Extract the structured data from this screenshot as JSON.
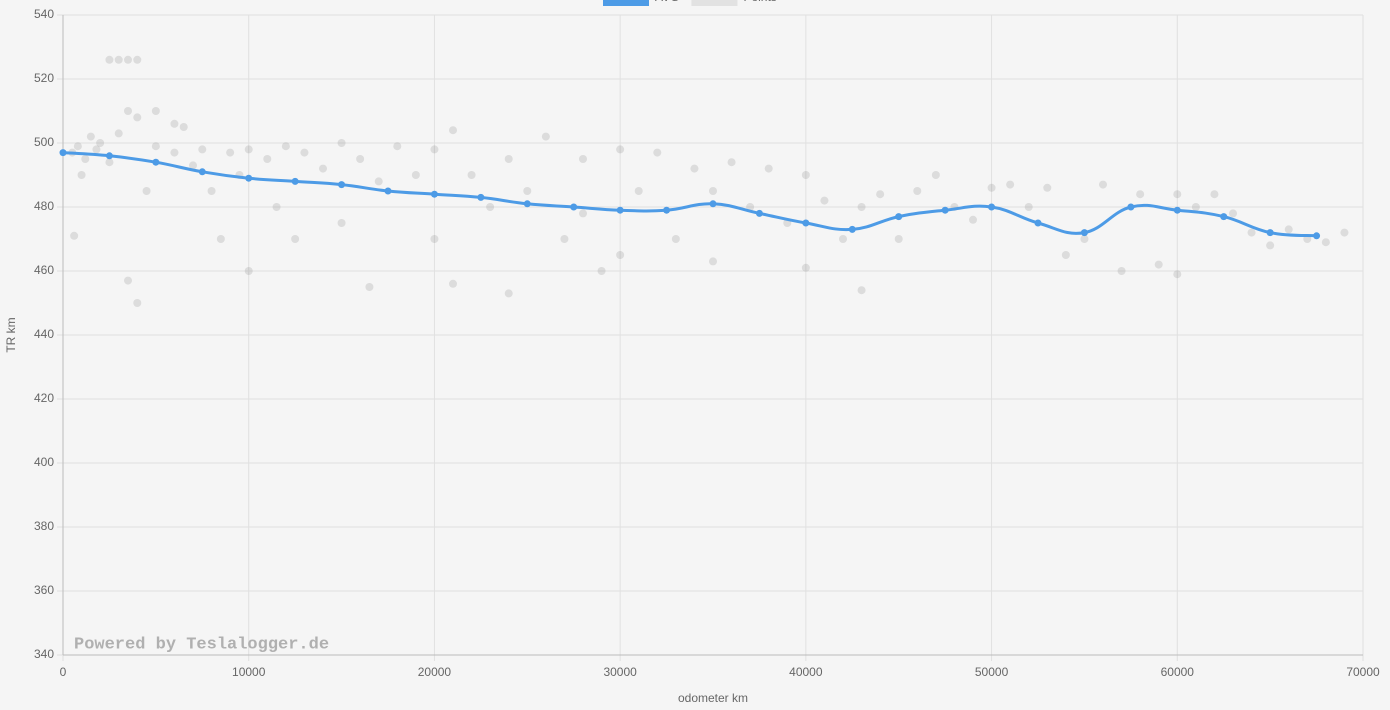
{
  "chart_data": {
    "type": "line",
    "xlabel": "odometer km",
    "ylabel": "TR km",
    "watermark": "Powered by Teslalogger.de",
    "xlim": [
      0,
      70000
    ],
    "xticks": [
      0,
      10000,
      20000,
      30000,
      40000,
      50000,
      60000,
      70000
    ],
    "ylim": [
      340,
      540
    ],
    "yticks": [
      340,
      360,
      380,
      400,
      420,
      440,
      460,
      480,
      500,
      520,
      540
    ],
    "grid": true,
    "legend": "top",
    "series": [
      {
        "name": "AVG",
        "type": "line",
        "color": "#4d9be6",
        "x": [
          0,
          2500,
          5000,
          7500,
          10000,
          12500,
          15000,
          17500,
          20000,
          22500,
          25000,
          27500,
          30000,
          32500,
          35000,
          37500,
          40000,
          42500,
          45000,
          47500,
          50000,
          52500,
          55000,
          57500,
          60000,
          62500,
          65000,
          67500
        ],
        "values": [
          497,
          496,
          494,
          491,
          489,
          488,
          487,
          485,
          484,
          483,
          481,
          480,
          479,
          479,
          481,
          478,
          475,
          473,
          477,
          479,
          480,
          475,
          472,
          480,
          479,
          477,
          472,
          471
        ]
      },
      {
        "name": "Points",
        "type": "scatter",
        "color": "#7a7a7a",
        "x": [
          500,
          800,
          1200,
          1500,
          1800,
          600,
          1000,
          2500,
          3000,
          3500,
          4000,
          2000,
          2500,
          3000,
          3500,
          4000,
          3500,
          4000,
          5000,
          5000,
          4500,
          6000,
          6500,
          6000,
          7000,
          7500,
          8000,
          8500,
          9000,
          9500,
          10000,
          10000,
          11000,
          11500,
          12000,
          12500,
          13000,
          14000,
          15000,
          15000,
          16000,
          16500,
          17000,
          18000,
          19000,
          20000,
          20000,
          21000,
          21000,
          22000,
          23000,
          24000,
          24000,
          25000,
          26000,
          27000,
          28000,
          28000,
          29000,
          30000,
          30000,
          31000,
          32000,
          33000,
          34000,
          35000,
          35000,
          36000,
          37000,
          38000,
          39000,
          40000,
          40000,
          41000,
          42000,
          43000,
          43000,
          44000,
          45000,
          46000,
          47000,
          48000,
          49000,
          50000,
          51000,
          52000,
          53000,
          54000,
          55000,
          56000,
          57000,
          58000,
          59000,
          60000,
          60000,
          61000,
          62000,
          63000,
          64000,
          65000,
          66000,
          67000,
          68000,
          69000
        ],
        "values": [
          497,
          499,
          495,
          502,
          498,
          471,
          490,
          526,
          526,
          526,
          526,
          500,
          494,
          503,
          457,
          450,
          510,
          508,
          510,
          499,
          485,
          506,
          505,
          497,
          493,
          498,
          485,
          470,
          497,
          490,
          460,
          498,
          495,
          480,
          499,
          470,
          497,
          492,
          500,
          475,
          495,
          455,
          488,
          499,
          490,
          498,
          470,
          504,
          456,
          490,
          480,
          495,
          453,
          485,
          502,
          470,
          495,
          478,
          460,
          498,
          465,
          485,
          497,
          470,
          492,
          485,
          463,
          494,
          480,
          492,
          475,
          490,
          461,
          482,
          470,
          480,
          454,
          484,
          470,
          485,
          490,
          480,
          476,
          486,
          487,
          480,
          486,
          465,
          470,
          487,
          460,
          484,
          462,
          484,
          459,
          480,
          484,
          478,
          472,
          468,
          473,
          470,
          469,
          472
        ]
      }
    ]
  }
}
